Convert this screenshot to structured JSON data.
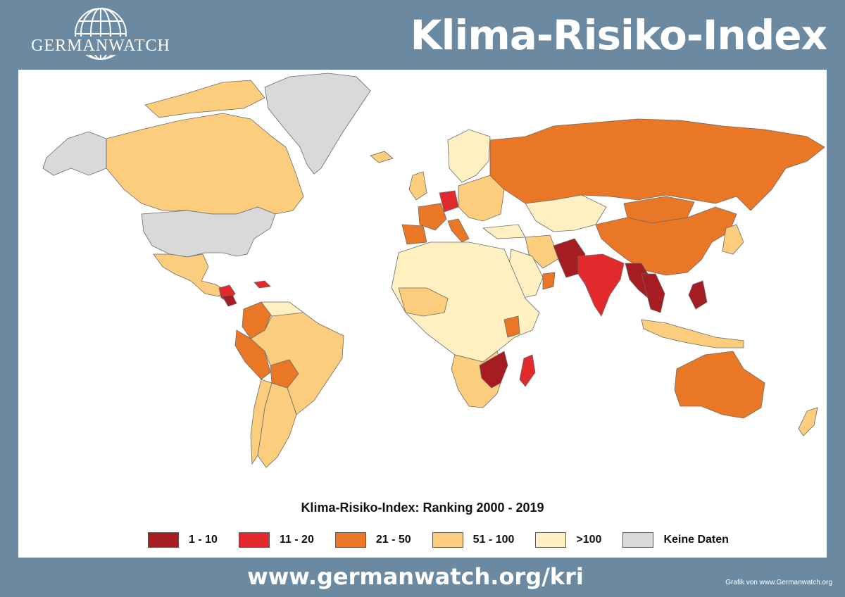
{
  "header": {
    "logo_text": "GERMANWATCH",
    "title": "Klima-Risiko-Index"
  },
  "map": {
    "legend_title": "Klima-Risiko-Index: Ranking 2000 - 2019",
    "legend": [
      {
        "label": "1 - 10",
        "color": "#a51d22"
      },
      {
        "label": "11 - 20",
        "color": "#e2292c"
      },
      {
        "label": "21 - 50",
        "color": "#ea7725"
      },
      {
        "label": "51 - 100",
        "color": "#fbcd7d"
      },
      {
        "label": ">100",
        "color": "#fff0c2"
      },
      {
        "label": "Keine Daten",
        "color": "#d9d9d9"
      }
    ]
  },
  "footer": {
    "url": "www.germanwatch.org/kri",
    "credit": "Grafik von www.Germanwatch.org"
  }
}
